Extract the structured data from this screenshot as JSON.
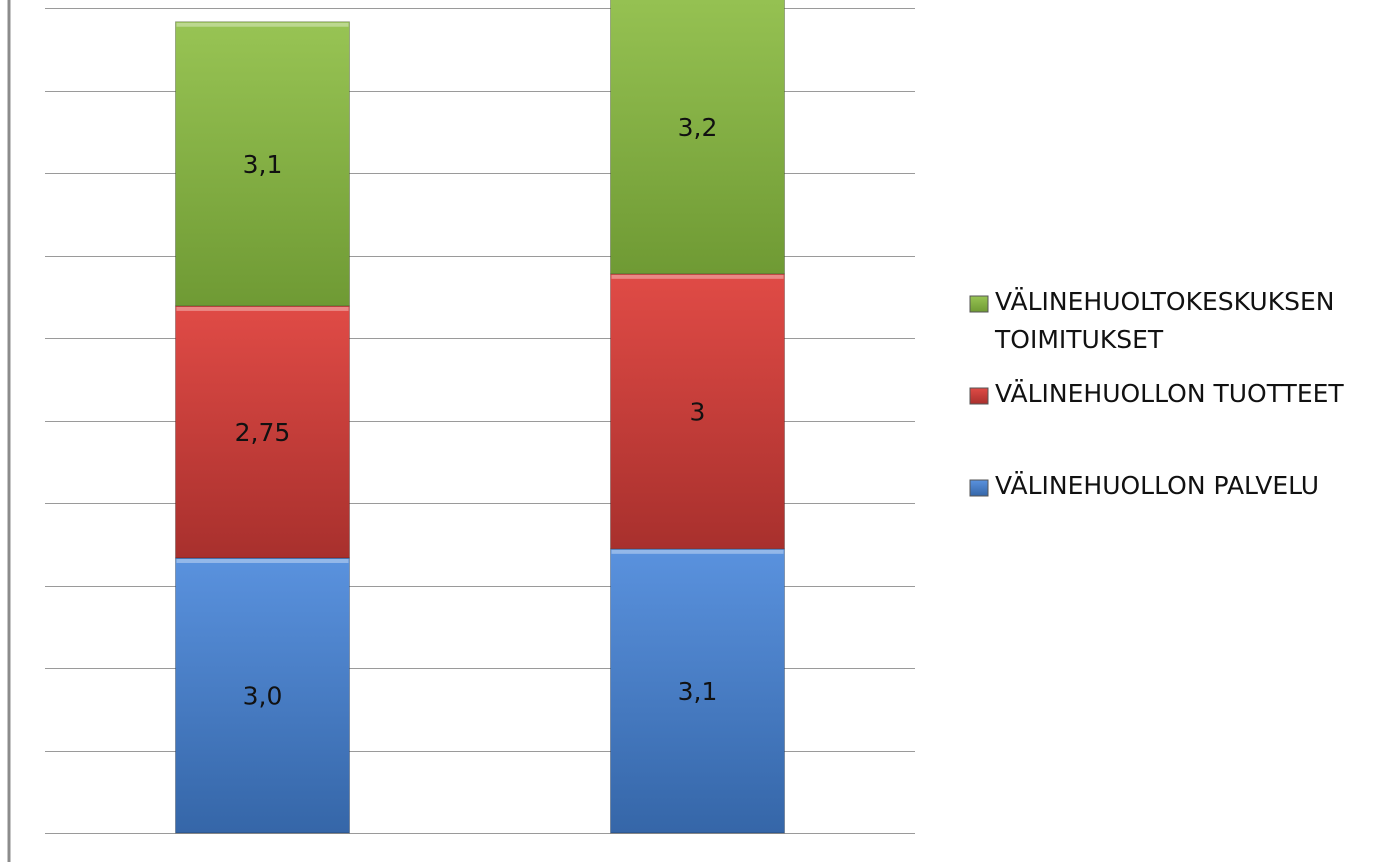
{
  "chart_data": {
    "type": "bar",
    "stacked": true,
    "categories": [
      "",
      ""
    ],
    "series": [
      {
        "name": "VÄLINEHUOLLON PALVELU",
        "values": [
          3.0,
          3.1
        ],
        "labels": [
          "3,0",
          "3,1"
        ],
        "color": "#4a7ebb"
      },
      {
        "name": "VÄLINEHUOLLON TUOTTEET",
        "values": [
          2.75,
          3.0
        ],
        "labels": [
          "2,75",
          "3"
        ],
        "color": "#c0504d"
      },
      {
        "name": "VÄLINEHUOLTOKESKUKSEN TOIMITUKSET",
        "values": [
          3.1,
          3.2
        ],
        "labels": [
          "3,1",
          "3,2"
        ],
        "color": "#9bbb59"
      }
    ],
    "legend_order": [
      2,
      1,
      0
    ],
    "legend_position": "right",
    "grid": true,
    "ylim": [
      0,
      9.0
    ],
    "title": "",
    "xlabel": "",
    "ylabel": ""
  }
}
